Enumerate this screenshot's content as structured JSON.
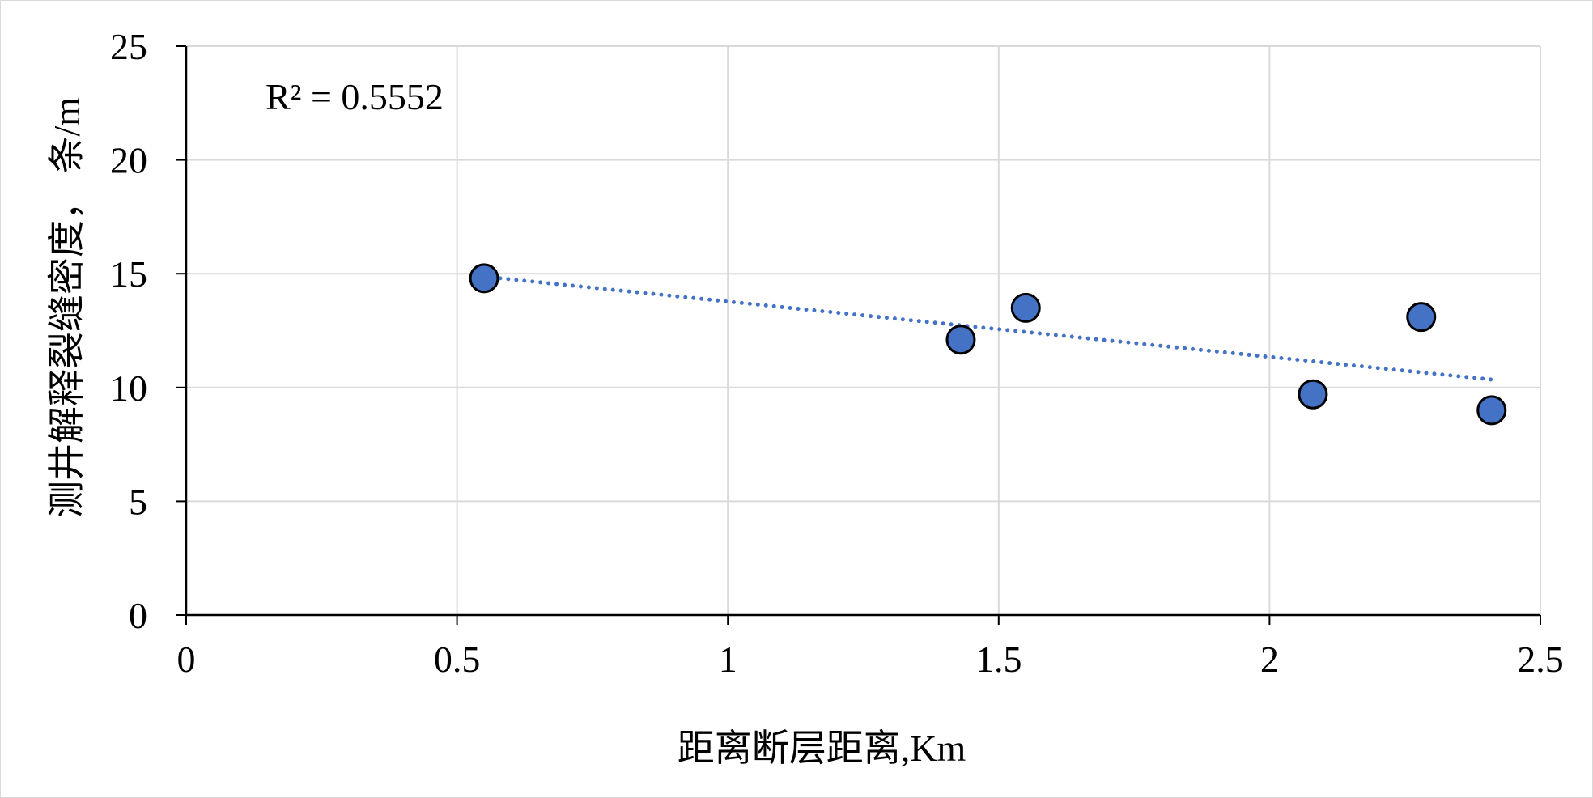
{
  "chart_data": {
    "type": "scatter",
    "title": "",
    "xlabel": "距离断层距离,Km",
    "ylabel": "测井解释裂缝密度， 条/m",
    "xlim": [
      0,
      2.5
    ],
    "ylim": [
      0,
      25
    ],
    "x_ticks": [
      "0",
      "0.5",
      "1",
      "1.5",
      "2",
      "2.5"
    ],
    "y_ticks": [
      "0",
      "5",
      "10",
      "15",
      "20",
      "25"
    ],
    "grid": true,
    "legend": "none",
    "series": [
      {
        "x": [
          0.55,
          1.43,
          1.55,
          2.08,
          2.28,
          2.41
        ],
        "y": [
          14.8,
          12.1,
          13.5,
          9.7,
          13.1,
          9.0
        ],
        "marker_color": "#4472C4",
        "marker_edge_color": "#000000"
      }
    ],
    "trendline": {
      "type": "linear",
      "style": "dotted",
      "color": "#4472C4",
      "x_range": [
        0.55,
        2.41
      ],
      "annotation": "R² = 0.5552"
    }
  }
}
